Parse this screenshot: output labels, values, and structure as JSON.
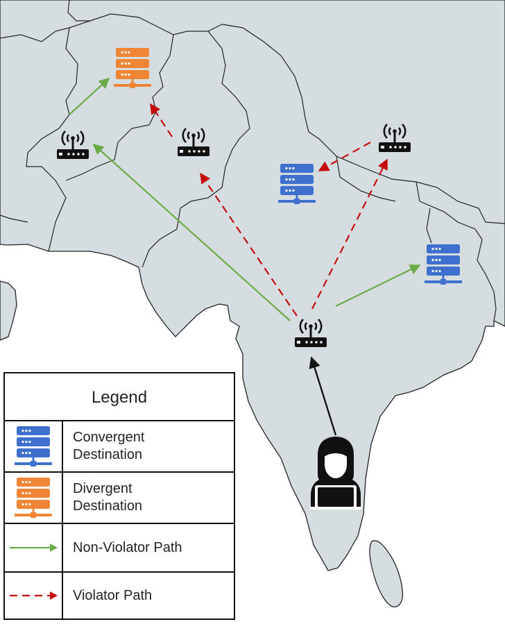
{
  "legend": {
    "title": "Legend",
    "items": [
      {
        "label": "Convergent\nDestination",
        "icon": "server-icon",
        "color": "#3f6fcf"
      },
      {
        "label": "Divergent\nDestination",
        "icon": "server-icon",
        "color": "#ef8535"
      },
      {
        "label": "Non-Violator Path",
        "icon": "solid-arrow-icon",
        "color": "#6aaa46"
      },
      {
        "label": "Violator Path",
        "icon": "dashed-arrow-icon",
        "color": "#c40d0d"
      }
    ]
  },
  "colors": {
    "land": "#d5dde0",
    "border": "#222222",
    "convergent": "#3f6fcf",
    "divergent": "#ef8535",
    "non_violator": "#6aaa46",
    "violator": "#c40d0d",
    "device": "#111111"
  },
  "icons": {
    "router": "wifi-router-icon",
    "server": "server-icon",
    "user": "user-at-laptop-icon"
  }
}
